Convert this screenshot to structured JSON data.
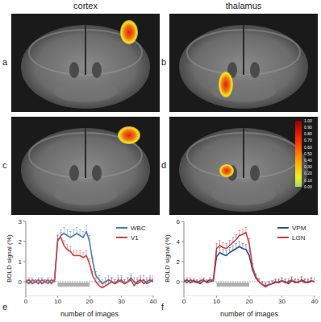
{
  "columns": [
    "cortex",
    "thalamus"
  ],
  "panels": [
    "a",
    "b",
    "c",
    "d"
  ],
  "colorbar": {
    "range": [
      0,
      1
    ],
    "ticks": [
      {
        "value": 0,
        "label": "0.00"
      },
      {
        "value": 0.1,
        "label": "0.10"
      },
      {
        "value": 0.2,
        "label": "0.20"
      },
      {
        "value": 0.3,
        "label": "0.30"
      },
      {
        "value": 0.4,
        "label": "0.40"
      },
      {
        "value": 0.5,
        "label": "0.50"
      },
      {
        "value": 0.6,
        "label": "0.60"
      },
      {
        "value": 0.7,
        "label": "0.70"
      },
      {
        "value": 0.8,
        "label": "0.80"
      },
      {
        "value": 0.9,
        "label": "0.90"
      },
      {
        "value": 1,
        "label": "1.00"
      }
    ]
  },
  "chart_data": [
    {
      "type": "line",
      "panel": "e",
      "x_label": "number of images",
      "y_label": "BOLD signal (%)",
      "x": [
        0,
        1,
        2,
        3,
        4,
        5,
        6,
        7,
        8,
        9,
        10,
        11,
        12,
        13,
        14,
        15,
        16,
        17,
        18,
        19,
        20,
        21,
        22,
        23,
        24,
        25,
        26,
        27,
        28,
        29,
        30,
        31,
        32,
        33,
        34,
        35,
        36,
        37,
        38,
        39,
        40
      ],
      "xlim": [
        0,
        40
      ],
      "xticks": [
        0,
        10,
        20,
        30,
        40
      ],
      "ylim": [
        -0.7,
        3
      ],
      "yticks": [
        0,
        1,
        2,
        3
      ],
      "stimulus": [
        10,
        20
      ],
      "legend": "top-right",
      "series": [
        {
          "name": "WBC",
          "color": "#4a7bbf",
          "values": [
            0,
            -0.1,
            0.1,
            0,
            -0.1,
            0.1,
            0,
            -0.1,
            0.1,
            0,
            2.0,
            2.3,
            2.4,
            2.3,
            2.2,
            2.3,
            2.4,
            2.3,
            2.2,
            2.5,
            2.0,
            1.0,
            0.3,
            0.1,
            -0.1,
            0,
            0.1,
            0,
            -0.1,
            0.1,
            0,
            -0.1,
            0,
            0.2,
            0,
            -0.1,
            0,
            0.1,
            -0.1,
            0,
            0.1
          ],
          "errors": [
            0.1,
            0.1,
            0.1,
            0.1,
            0.1,
            0.1,
            0.1,
            0.1,
            0.1,
            0.1,
            0.3,
            0.3,
            0.3,
            0.3,
            0.3,
            0.3,
            0.3,
            0.3,
            0.3,
            0.3,
            0.3,
            0.2,
            0.2,
            0.2,
            0.2,
            0.2,
            0.2,
            0.2,
            0.2,
            0.2,
            0.2,
            0.2,
            0.2,
            0.2,
            0.2,
            0.2,
            0.2,
            0.2,
            0.2,
            0.2,
            0.2
          ]
        },
        {
          "name": "V1",
          "color": "#d0453f",
          "values": [
            0,
            0.1,
            -0.1,
            0,
            0.1,
            -0.1,
            0,
            0.1,
            -0.1,
            0.1,
            2.1,
            2.2,
            1.8,
            1.6,
            1.5,
            1.3,
            1.3,
            1.3,
            1.2,
            1.3,
            0.9,
            0.3,
            0,
            -0.2,
            -0.3,
            -0.2,
            -0.1,
            0,
            -0.1,
            0,
            0.1,
            -0.1,
            0,
            0.1,
            -0.2,
            0,
            0.1,
            -0.1,
            0,
            0.1,
            0
          ],
          "errors": [
            0.1,
            0.1,
            0.1,
            0.1,
            0.1,
            0.1,
            0.1,
            0.1,
            0.1,
            0.1,
            0.25,
            0.25,
            0.25,
            0.25,
            0.25,
            0.25,
            0.25,
            0.25,
            0.25,
            0.25,
            0.25,
            0.2,
            0.2,
            0.2,
            0.2,
            0.2,
            0.2,
            0.2,
            0.2,
            0.2,
            0.2,
            0.2,
            0.2,
            0.2,
            0.2,
            0.2,
            0.2,
            0.2,
            0.2,
            0.2,
            0.2
          ]
        }
      ]
    },
    {
      "type": "line",
      "panel": "f",
      "x_label": "number of images",
      "y_label": "BOLD signal (%)",
      "x": [
        0,
        1,
        2,
        3,
        4,
        5,
        6,
        7,
        8,
        9,
        10,
        11,
        12,
        13,
        14,
        15,
        16,
        17,
        18,
        19,
        20,
        21,
        22,
        23,
        24,
        25,
        26,
        27,
        28,
        29,
        30,
        31,
        32,
        33,
        34,
        35,
        36,
        37,
        38,
        39,
        40
      ],
      "xlim": [
        0,
        40
      ],
      "xticks": [
        0,
        10,
        20,
        30,
        40
      ],
      "ylim": [
        -1.4,
        6
      ],
      "yticks": [
        0,
        2,
        4,
        6
      ],
      "stimulus": [
        10,
        20
      ],
      "legend": "top-right",
      "series": [
        {
          "name": "VPM",
          "color": "#2f5191",
          "values": [
            0,
            0.2,
            -0.1,
            0.1,
            0,
            -0.2,
            0.1,
            0,
            0.2,
            0.1,
            2.5,
            2.9,
            2.7,
            2.6,
            2.9,
            3.1,
            3.3,
            3.5,
            3.3,
            3.2,
            2.6,
            1.2,
            0.4,
            0,
            -0.3,
            -0.4,
            -0.3,
            -0.2,
            0,
            -0.1,
            0.1,
            0,
            -0.2,
            0.1,
            0,
            -0.1,
            0.2,
            0,
            -0.1,
            0.1,
            0
          ],
          "errors": [
            0.2,
            0.2,
            0.2,
            0.2,
            0.2,
            0.2,
            0.2,
            0.2,
            0.2,
            0.2,
            0.5,
            0.5,
            0.5,
            0.5,
            0.5,
            0.5,
            0.5,
            0.5,
            0.5,
            0.5,
            0.5,
            0.3,
            0.3,
            0.3,
            0.3,
            0.3,
            0.3,
            0.3,
            0.3,
            0.3,
            0.3,
            0.3,
            0.3,
            0.3,
            0.3,
            0.3,
            0.3,
            0.3,
            0.3,
            0.3,
            0.3
          ]
        },
        {
          "name": "LGN",
          "color": "#cc3a3a",
          "values": [
            0.1,
            -0.1,
            0.2,
            0,
            -0.1,
            0.1,
            0.2,
            -0.1,
            0,
            0.1,
            3.3,
            3.6,
            3.4,
            3.3,
            3.6,
            3.9,
            4.2,
            4.6,
            4.7,
            4.9,
            3.8,
            1.5,
            0.5,
            0,
            -0.3,
            -0.5,
            -0.3,
            -0.2,
            -0.1,
            0,
            0.1,
            -0.1,
            0,
            0.2,
            -0.1,
            0,
            0.1,
            -0.1,
            0,
            0.1,
            0
          ],
          "errors": [
            0.2,
            0.2,
            0.2,
            0.2,
            0.2,
            0.2,
            0.2,
            0.2,
            0.2,
            0.2,
            0.5,
            0.5,
            0.5,
            0.5,
            0.5,
            0.5,
            0.5,
            0.5,
            0.5,
            0.5,
            0.5,
            0.3,
            0.3,
            0.3,
            0.3,
            0.3,
            0.3,
            0.3,
            0.3,
            0.3,
            0.3,
            0.3,
            0.3,
            0.3,
            0.3,
            0.3,
            0.3,
            0.3,
            0.3,
            0.3,
            0.3
          ]
        }
      ]
    }
  ]
}
